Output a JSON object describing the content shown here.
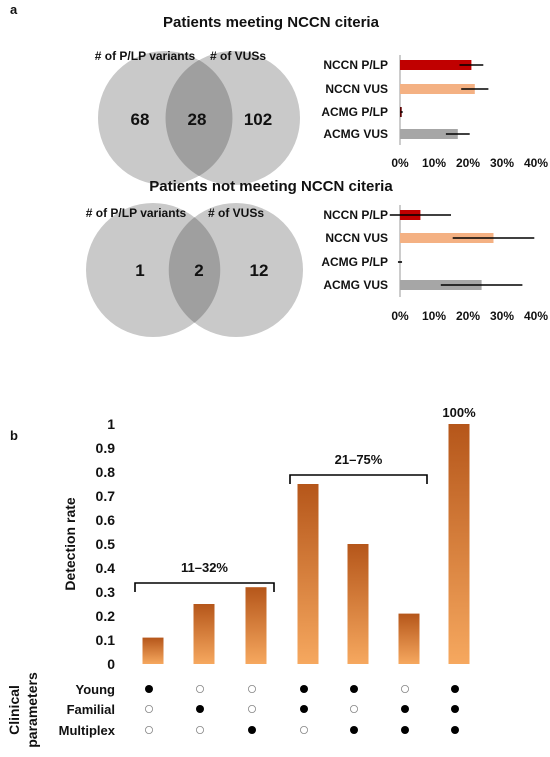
{
  "panel_a": {
    "label": "a",
    "colors": {
      "venn_fill": "#c9c9c9",
      "overlap_fill": "#9f9f9f",
      "nccn_plp": "#c00000",
      "nccn_vus": "#f4b183",
      "acmg_plp": "#5b0000",
      "acmg_vus": "#a6a6a6"
    },
    "groups": [
      {
        "title": "Patients meeting NCCN citeria",
        "venn": {
          "left_label": "# of P/LP variants",
          "right_label": "# of VUSs",
          "left_only": "68",
          "overlap": "28",
          "right_only": "102"
        },
        "bar": {
          "categories": [
            "NCCN P/LP",
            "NCCN VUS",
            "ACMG P/LP",
            "ACMG VUS"
          ],
          "values": [
            21,
            22,
            0.5,
            17
          ],
          "errors": [
            3.5,
            4,
            0.3,
            3.5
          ],
          "ticks": [
            "0%",
            "10%",
            "20%",
            "30%",
            "40%"
          ],
          "xlim": [
            0,
            40
          ]
        }
      },
      {
        "title": "Patients not meeting NCCN citeria",
        "venn": {
          "left_label": "# of P/LP variants",
          "right_label": "# of VUSs",
          "left_only": "1",
          "overlap": "2",
          "right_only": "12"
        },
        "bar": {
          "categories": [
            "NCCN P/LP",
            "NCCN VUS",
            "ACMG P/LP",
            "ACMG VUS"
          ],
          "values": [
            6,
            27.5,
            0,
            24
          ],
          "errors": [
            9,
            12,
            0.6,
            12
          ],
          "ticks": [
            "0%",
            "10%",
            "20%",
            "30%",
            "40%"
          ],
          "xlim": [
            0,
            40
          ]
        }
      }
    ]
  },
  "chart_data": {
    "type": "bar",
    "label": "b",
    "ylabel": "Detection rate",
    "ylim": [
      0,
      1
    ],
    "y_ticks": [
      "0",
      "0.1",
      "0.2",
      "0.3",
      "0.4",
      "0.5",
      "0.6",
      "0.7",
      "0.8",
      "0.9",
      "1"
    ],
    "values": [
      0.11,
      0.25,
      0.32,
      0.75,
      0.5,
      0.21,
      1.0
    ],
    "bar_color_top": "#b5561a",
    "bar_color_bottom": "#f6a85f",
    "annotations": [
      {
        "text": "11–32%",
        "from": 0,
        "to": 2,
        "at": 0.4
      },
      {
        "text": "21–75%",
        "from": 3,
        "to": 5,
        "at": 0.85
      },
      {
        "text": "100%",
        "from": 6,
        "to": 6,
        "at": 1.02
      }
    ],
    "matrix_title": "Clinical parameters",
    "matrix_rows": [
      {
        "label": "Young",
        "filled": [
          1,
          0,
          0,
          1,
          1,
          0,
          1
        ]
      },
      {
        "label": "Familial",
        "filled": [
          0,
          1,
          0,
          1,
          0,
          1,
          1
        ]
      },
      {
        "label": "Multiplex",
        "filled": [
          0,
          0,
          1,
          0,
          1,
          1,
          1
        ]
      }
    ]
  }
}
